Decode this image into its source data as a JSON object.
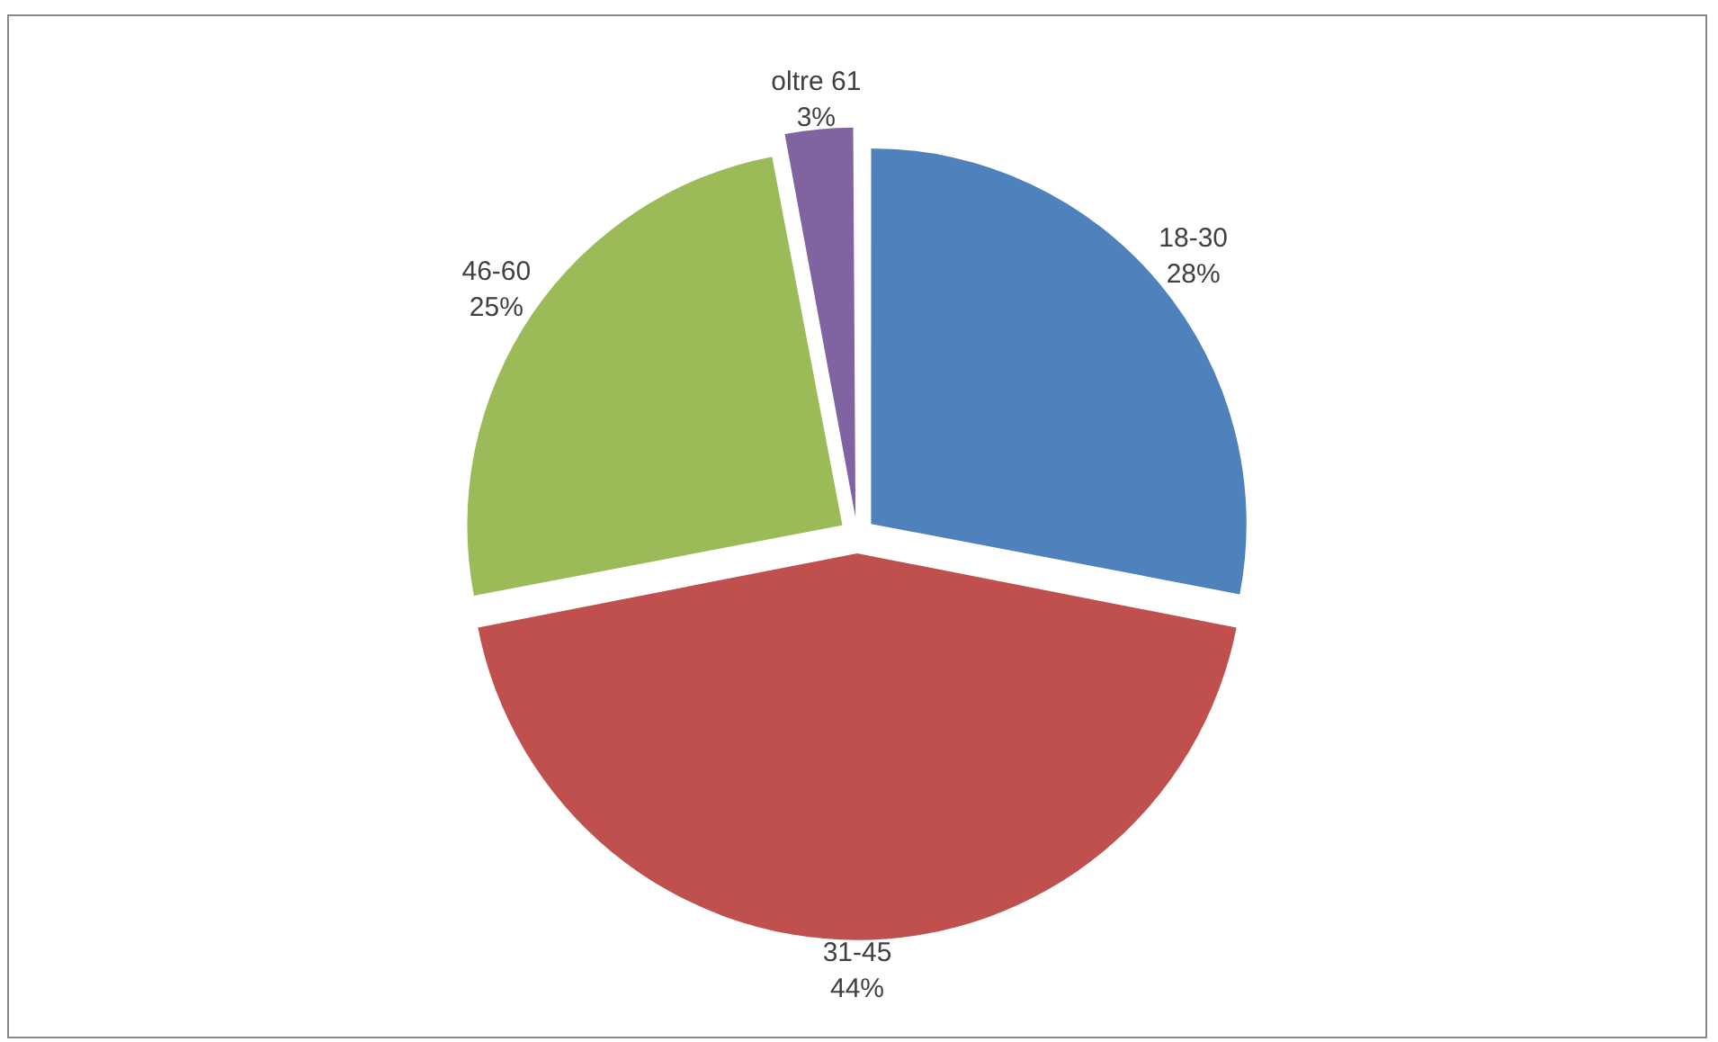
{
  "chart_data": {
    "type": "pie",
    "categories": [
      "18-30",
      "31-45",
      "46-60",
      "oltre 61"
    ],
    "values": [
      28,
      44,
      25,
      3
    ],
    "value_labels": [
      "28%",
      "44%",
      "25%",
      "3%"
    ],
    "colors": [
      "#4f81bd",
      "#c0504d",
      "#9bbb59",
      "#8064a2"
    ],
    "legend": false
  }
}
